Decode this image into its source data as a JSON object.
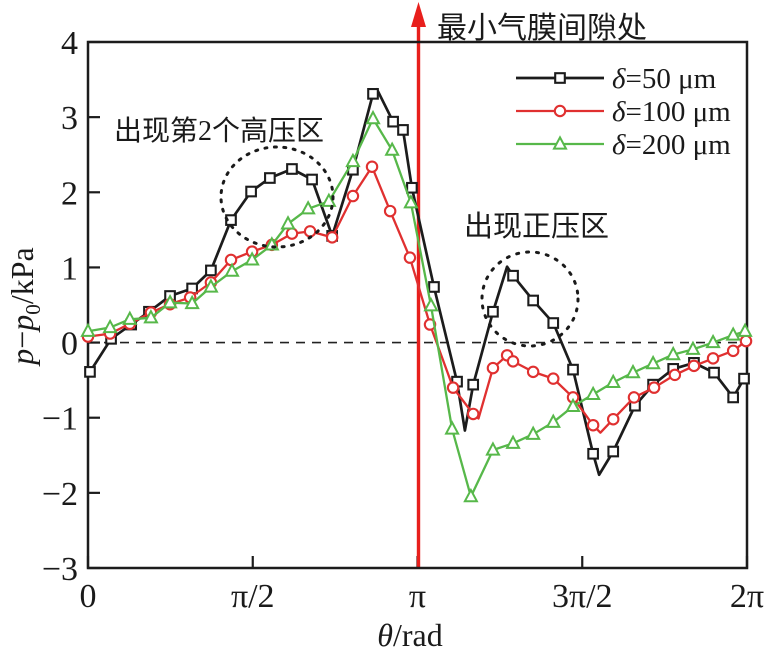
{
  "annotations": {
    "min_gap": "最小气膜间隙处",
    "second_high_pressure": "出现第2个高压区",
    "positive_pressure": "出现正压区"
  },
  "axes": {
    "x": {
      "label_parts": {
        "sym": "θ",
        "rest": "/rad"
      },
      "ticks": [
        {
          "label": "0",
          "t": 0
        },
        {
          "label": "π/2",
          "t": 0.5
        },
        {
          "label": "π",
          "t": 1
        },
        {
          "label": "3π/2",
          "t": 1.5
        },
        {
          "label": "2π",
          "t": 2
        }
      ]
    },
    "y": {
      "label_parts": {
        "p1": "p",
        "minus": "−",
        "p2": "p",
        "sub": "0",
        "rest": "/kPa"
      },
      "ticks": [
        {
          "label": "4",
          "v": 4
        },
        {
          "label": "3",
          "v": 3
        },
        {
          "label": "2",
          "v": 2
        },
        {
          "label": "1",
          "v": 1
        },
        {
          "label": "0",
          "v": 0
        },
        {
          "label": "−1",
          "v": -1
        },
        {
          "label": "−2",
          "v": -2
        },
        {
          "label": "−3",
          "v": -3
        }
      ]
    }
  },
  "legend": {
    "items": [
      {
        "label": "δ=50 μm",
        "series": "delta-50um"
      },
      {
        "label": "δ=100 μm",
        "series": "delta-100um"
      },
      {
        "label": "δ=200 μm",
        "series": "delta-200um"
      }
    ]
  },
  "colors": {
    "black": "#1c1c1c",
    "red": "#e03030",
    "green": "#57b84a",
    "arrow_red": "#e81f1c"
  },
  "chart_data": {
    "type": "line",
    "title": "",
    "xlabel": "θ/rad",
    "ylabel": "p−p0/kPa",
    "xlim_pi_units": [
      0,
      2
    ],
    "ylim": [
      -3,
      4
    ],
    "grid": false,
    "legend_position": "top-right",
    "hline": {
      "y": 0,
      "style": "dashed"
    },
    "vline": {
      "x_pi_units": 1,
      "color": "#e81f1c",
      "label": "最小气膜间隙处"
    },
    "note": "x values are θ in multiples of π; m=1 means a marker is drawn at that vertex",
    "series": [
      {
        "name": "δ=50 μm",
        "marker": "square",
        "color": "#1c1c1c",
        "points": [
          [
            0.006,
            -0.39,
            1
          ],
          [
            0.07,
            0.05,
            1
          ],
          [
            0.131,
            0.24,
            1
          ],
          [
            0.185,
            0.41,
            1
          ],
          [
            0.249,
            0.62,
            1
          ],
          [
            0.316,
            0.72,
            1
          ],
          [
            0.373,
            0.96,
            1
          ],
          [
            0.434,
            1.63,
            1
          ],
          [
            0.495,
            2.01,
            1
          ],
          [
            0.552,
            2.19,
            1
          ],
          [
            0.619,
            2.31,
            1
          ],
          [
            0.68,
            2.17,
            1
          ],
          [
            0.741,
            1.42,
            1
          ],
          [
            0.804,
            2.3,
            1
          ],
          [
            0.865,
            3.31,
            1
          ],
          [
            0.877,
            3.37,
            0
          ],
          [
            0.926,
            2.94,
            1
          ],
          [
            0.956,
            2.83,
            1
          ],
          [
            0.983,
            2.06,
            1
          ],
          [
            1.05,
            0.74,
            1
          ],
          [
            1.12,
            -0.52,
            1
          ],
          [
            1.144,
            -1.17,
            0
          ],
          [
            1.169,
            -0.56,
            1
          ],
          [
            1.229,
            0.41,
            1
          ],
          [
            1.272,
            1.01,
            0
          ],
          [
            1.29,
            0.89,
            1
          ],
          [
            1.351,
            0.56,
            1
          ],
          [
            1.412,
            0.26,
            1
          ],
          [
            1.472,
            -0.36,
            1
          ],
          [
            1.533,
            -1.48,
            1
          ],
          [
            1.551,
            -1.76,
            0
          ],
          [
            1.594,
            -1.45,
            1
          ],
          [
            1.66,
            -0.84,
            1
          ],
          [
            1.715,
            -0.56,
            1
          ],
          [
            1.776,
            -0.35,
            1
          ],
          [
            1.839,
            -0.27,
            1
          ],
          [
            1.9,
            -0.4,
            1
          ],
          [
            1.958,
            -0.73,
            1
          ],
          [
            1.991,
            -0.48,
            1
          ]
        ]
      },
      {
        "name": "δ=100 μm",
        "marker": "circle",
        "color": "#e03030",
        "points": [
          [
            0.0,
            0.08,
            1
          ],
          [
            0.067,
            0.12,
            1
          ],
          [
            0.127,
            0.25,
            1
          ],
          [
            0.191,
            0.4,
            1
          ],
          [
            0.249,
            0.51,
            1
          ],
          [
            0.31,
            0.6,
            1
          ],
          [
            0.373,
            0.8,
            1
          ],
          [
            0.434,
            1.1,
            1
          ],
          [
            0.498,
            1.21,
            1
          ],
          [
            0.558,
            1.3,
            1
          ],
          [
            0.619,
            1.45,
            1
          ],
          [
            0.674,
            1.48,
            1
          ],
          [
            0.741,
            1.4,
            1
          ],
          [
            0.804,
            1.95,
            1
          ],
          [
            0.862,
            2.34,
            1
          ],
          [
            0.917,
            1.75,
            1
          ],
          [
            0.977,
            1.13,
            1
          ],
          [
            1.038,
            0.24,
            1
          ],
          [
            1.108,
            -0.6,
            1
          ],
          [
            1.169,
            -0.95,
            1
          ],
          [
            1.185,
            -1.01,
            0
          ],
          [
            1.229,
            -0.34,
            1
          ],
          [
            1.272,
            -0.17,
            1
          ],
          [
            1.29,
            -0.25,
            1
          ],
          [
            1.351,
            -0.39,
            1
          ],
          [
            1.412,
            -0.48,
            1
          ],
          [
            1.472,
            -0.73,
            1
          ],
          [
            1.533,
            -1.1,
            1
          ],
          [
            1.555,
            -1.2,
            0
          ],
          [
            1.594,
            -1.02,
            1
          ],
          [
            1.657,
            -0.73,
            1
          ],
          [
            1.718,
            -0.6,
            1
          ],
          [
            1.781,
            -0.43,
            1
          ],
          [
            1.839,
            -0.31,
            1
          ],
          [
            1.897,
            -0.21,
            1
          ],
          [
            1.958,
            -0.11,
            1
          ],
          [
            1.997,
            0.02,
            1
          ]
        ]
      },
      {
        "name": "δ=200 μm",
        "marker": "triangle",
        "color": "#57b84a",
        "points": [
          [
            0.0,
            0.15,
            1
          ],
          [
            0.067,
            0.2,
            1
          ],
          [
            0.127,
            0.31,
            1
          ],
          [
            0.191,
            0.33,
            1
          ],
          [
            0.249,
            0.53,
            1
          ],
          [
            0.316,
            0.52,
            1
          ],
          [
            0.373,
            0.74,
            1
          ],
          [
            0.437,
            0.95,
            1
          ],
          [
            0.498,
            1.1,
            1
          ],
          [
            0.558,
            1.3,
            1
          ],
          [
            0.607,
            1.58,
            1
          ],
          [
            0.668,
            1.78,
            1
          ],
          [
            0.731,
            1.88,
            1
          ],
          [
            0.804,
            2.41,
            1
          ],
          [
            0.865,
            2.98,
            1
          ],
          [
            0.923,
            2.56,
            1
          ],
          [
            0.98,
            1.86,
            1
          ],
          [
            1.041,
            0.49,
            1
          ],
          [
            1.105,
            -1.15,
            1
          ],
          [
            1.162,
            -2.05,
            1
          ],
          [
            1.229,
            -1.43,
            1
          ],
          [
            1.29,
            -1.34,
            1
          ],
          [
            1.351,
            -1.22,
            1
          ],
          [
            1.412,
            -1.06,
            1
          ],
          [
            1.472,
            -0.85,
            1
          ],
          [
            1.533,
            -0.69,
            1
          ],
          [
            1.594,
            -0.53,
            1
          ],
          [
            1.654,
            -0.4,
            1
          ],
          [
            1.715,
            -0.28,
            1
          ],
          [
            1.776,
            -0.16,
            1
          ],
          [
            1.836,
            -0.09,
            1
          ],
          [
            1.897,
            0.0,
            1
          ],
          [
            1.958,
            0.1,
            1
          ],
          [
            1.994,
            0.15,
            1
          ]
        ]
      }
    ]
  }
}
